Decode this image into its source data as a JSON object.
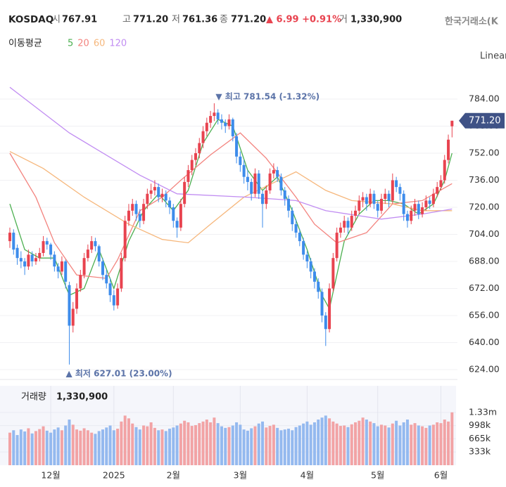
{
  "header": {
    "symbol": "KOSDAQ",
    "open_label": "시",
    "open": "767.91",
    "high_label": "고",
    "high": "771.20",
    "low_label": "저",
    "low": "761.36",
    "close_label": "종",
    "close": "771.20",
    "change": "▲ 6.99 +0.91%",
    "volume_label": "거",
    "volume": "1,330,900",
    "exchange": "한국거래소(K",
    "scale": "Linear"
  },
  "ma_legend": {
    "title": "이동평균",
    "items": [
      "5",
      "20",
      "60",
      "120"
    ]
  },
  "chart_data": {
    "type": "candlestick",
    "up_color": "#e8434f",
    "down_color": "#3d8ceb",
    "vol_up_color": "#f2a3a5",
    "vol_down_color": "#94b9ef",
    "ylim": [
      620,
      790
    ],
    "yticks": [
      {
        "value": 624,
        "label": "624.00"
      },
      {
        "value": 640,
        "label": "640.00"
      },
      {
        "value": 656,
        "label": "656.00"
      },
      {
        "value": 672,
        "label": "672.00"
      },
      {
        "value": 688,
        "label": "688.00"
      },
      {
        "value": 704,
        "label": "704.00"
      },
      {
        "value": 720,
        "label": "720.00"
      },
      {
        "value": 736,
        "label": "736.00"
      },
      {
        "value": 752,
        "label": "752.00"
      },
      {
        "value": 768,
        "label": "768.00"
      },
      {
        "value": 784,
        "label": "784.00"
      }
    ],
    "x_labels": [
      {
        "label": "12월",
        "at": 11
      },
      {
        "label": "2025",
        "at": 28
      },
      {
        "label": "2월",
        "at": 44
      },
      {
        "label": "3월",
        "at": 62
      },
      {
        "label": "4월",
        "at": 80
      },
      {
        "label": "5월",
        "at": 99
      },
      {
        "label": "6월",
        "at": 116
      }
    ],
    "high_note": {
      "text": "▼ 최고 781.54 (-1.32%)",
      "at": 55
    },
    "low_note": {
      "text": "▲ 최저 627.01 (23.00%)",
      "at": 16
    },
    "candles": [
      [
        700,
        708,
        696,
        705
      ],
      [
        705,
        707,
        692,
        695
      ],
      [
        696,
        698,
        686,
        690
      ],
      [
        690,
        694,
        684,
        688
      ],
      [
        688,
        690,
        680,
        685
      ],
      [
        685,
        695,
        683,
        692
      ],
      [
        692,
        694,
        685,
        688
      ],
      [
        688,
        693,
        686,
        690
      ],
      [
        690,
        696,
        688,
        693
      ],
      [
        693,
        703,
        691,
        700
      ],
      [
        700,
        702,
        695,
        698
      ],
      [
        698,
        699,
        689,
        692
      ],
      [
        692,
        694,
        682,
        685
      ],
      [
        685,
        687,
        678,
        682
      ],
      [
        682,
        691,
        680,
        688
      ],
      [
        688,
        689,
        672,
        676
      ],
      [
        674,
        676,
        627.01,
        650
      ],
      [
        650,
        664,
        646,
        660
      ],
      [
        660,
        675,
        657,
        672
      ],
      [
        672,
        683,
        670,
        680
      ],
      [
        680,
        693,
        678,
        690
      ],
      [
        690,
        698,
        688,
        695
      ],
      [
        695,
        703,
        693,
        700
      ],
      [
        700,
        702,
        694,
        697
      ],
      [
        697,
        698,
        685,
        688
      ],
      [
        688,
        690,
        677,
        680
      ],
      [
        680,
        683,
        672,
        675
      ],
      [
        675,
        678,
        664,
        668
      ],
      [
        668,
        671,
        659,
        662
      ],
      [
        662,
        675,
        660,
        672
      ],
      [
        672,
        693,
        670,
        690
      ],
      [
        690,
        715,
        688,
        712
      ],
      [
        712,
        722,
        709,
        718
      ],
      [
        718,
        725,
        715,
        722
      ],
      [
        722,
        724,
        712,
        716
      ],
      [
        716,
        719,
        708,
        712
      ],
      [
        712,
        725,
        710,
        722
      ],
      [
        722,
        731,
        719,
        728
      ],
      [
        728,
        734,
        725,
        730
      ],
      [
        730,
        736,
        727,
        732
      ],
      [
        732,
        734,
        723,
        726
      ],
      [
        726,
        731,
        723,
        728
      ],
      [
        728,
        730,
        720,
        724
      ],
      [
        724,
        726,
        716,
        720
      ],
      [
        720,
        722,
        708,
        712
      ],
      [
        712,
        714,
        702,
        708
      ],
      [
        708,
        725,
        706,
        722
      ],
      [
        722,
        738,
        720,
        735
      ],
      [
        735,
        745,
        732,
        742
      ],
      [
        742,
        751,
        739,
        748
      ],
      [
        748,
        755,
        745,
        752
      ],
      [
        752,
        761,
        749,
        758
      ],
      [
        758,
        768,
        755,
        765
      ],
      [
        765,
        773,
        762,
        770
      ],
      [
        770,
        777,
        767,
        774
      ],
      [
        774,
        781.54,
        771,
        776
      ],
      [
        776,
        778,
        769,
        772
      ],
      [
        772,
        775,
        766,
        770
      ],
      [
        770,
        772,
        764,
        768
      ],
      [
        768,
        775,
        766,
        772
      ],
      [
        772,
        773,
        759,
        762
      ],
      [
        762,
        764,
        746,
        750
      ],
      [
        750,
        753,
        741,
        745
      ],
      [
        745,
        748,
        734,
        738
      ],
      [
        738,
        742,
        730,
        735
      ],
      [
        735,
        737,
        724,
        728
      ],
      [
        728,
        743,
        726,
        740
      ],
      [
        740,
        742,
        725,
        728
      ],
      [
        728,
        730,
        708,
        722
      ],
      [
        722,
        733,
        719,
        730
      ],
      [
        730,
        743,
        728,
        740
      ],
      [
        740,
        746,
        737,
        742
      ],
      [
        742,
        744,
        735,
        738
      ],
      [
        738,
        740,
        727,
        730
      ],
      [
        730,
        732,
        721,
        725
      ],
      [
        725,
        727,
        714,
        718
      ],
      [
        718,
        720,
        706,
        710
      ],
      [
        710,
        713,
        702,
        705
      ],
      [
        705,
        707,
        697,
        700
      ],
      [
        700,
        702,
        689,
        692
      ],
      [
        692,
        694,
        684,
        688
      ],
      [
        688,
        690,
        678,
        682
      ],
      [
        682,
        684,
        672,
        676
      ],
      [
        676,
        678,
        666,
        670
      ],
      [
        670,
        672,
        652,
        656
      ],
      [
        656,
        658,
        638,
        648
      ],
      [
        648,
        675,
        646,
        672
      ],
      [
        672,
        693,
        670,
        690
      ],
      [
        690,
        708,
        688,
        705
      ],
      [
        705,
        711,
        702,
        708
      ],
      [
        708,
        715,
        705,
        712
      ],
      [
        712,
        714,
        704,
        708
      ],
      [
        708,
        718,
        706,
        715
      ],
      [
        715,
        721,
        712,
        718
      ],
      [
        718,
        727,
        716,
        724
      ],
      [
        724,
        729,
        720,
        726
      ],
      [
        726,
        728,
        718,
        722
      ],
      [
        722,
        731,
        720,
        728
      ],
      [
        728,
        730,
        719,
        722
      ],
      [
        722,
        724,
        714,
        718
      ],
      [
        718,
        728,
        716,
        725
      ],
      [
        725,
        731,
        722,
        728
      ],
      [
        728,
        730,
        720,
        724
      ],
      [
        724,
        740,
        722,
        736
      ],
      [
        736,
        738,
        729,
        732
      ],
      [
        732,
        734,
        724,
        728
      ],
      [
        728,
        730,
        712,
        716
      ],
      [
        716,
        718,
        708,
        712
      ],
      [
        712,
        721,
        710,
        718
      ],
      [
        718,
        725,
        715,
        722
      ],
      [
        722,
        724,
        713,
        716
      ],
      [
        716,
        723,
        714,
        720
      ],
      [
        720,
        727,
        718,
        724
      ],
      [
        724,
        726,
        719,
        722
      ],
      [
        722,
        731,
        720,
        728
      ],
      [
        728,
        735,
        726,
        732
      ],
      [
        732,
        739,
        730,
        736
      ],
      [
        736,
        751,
        734,
        748
      ],
      [
        748,
        763,
        746,
        760
      ],
      [
        767.91,
        771.2,
        761.36,
        771.2
      ]
    ],
    "volume_title": "거래량",
    "volume_value": "1,330,900",
    "vlim": [
      0,
      2000000
    ],
    "vticks": [
      {
        "value": 333000,
        "label": "333k"
      },
      {
        "value": 665000,
        "label": "665k"
      },
      {
        "value": 998000,
        "label": "998k"
      },
      {
        "value": 1330000,
        "label": "1.33m"
      }
    ],
    "volume": [
      820000,
      880000,
      760000,
      900000,
      850000,
      930000,
      800000,
      860000,
      910000,
      980000,
      870000,
      820000,
      900000,
      950000,
      880000,
      1000000,
      1150000,
      1020000,
      900000,
      870000,
      930000,
      880000,
      820000,
      790000,
      860000,
      900000,
      950000,
      1000000,
      880000,
      920000,
      1100000,
      1250000,
      1180000,
      1050000,
      960000,
      900000,
      1000000,
      980000,
      1080000,
      940000,
      880000,
      900000,
      860000,
      920000,
      950000,
      1000000,
      1050000,
      1120000,
      1080000,
      990000,
      1010000,
      1060000,
      1100000,
      1150000,
      1080000,
      1200000,
      1060000,
      980000,
      940000,
      960000,
      1000000,
      1080000,
      1020000,
      900000,
      870000,
      930000,
      980000,
      1050000,
      1100000,
      950000,
      990000,
      1020000,
      940000,
      880000,
      900000,
      920000,
      880000,
      960000,
      1000000,
      1050000,
      1100000,
      1020000,
      1080000,
      1150000,
      1200000,
      1250000,
      1180000,
      1100000,
      1050000,
      990000,
      1000000,
      960000,
      1030000,
      1080000,
      1120000,
      1200000,
      1150000,
      1100000,
      1060000,
      980000,
      1020000,
      1000000,
      950000,
      1050000,
      1120000,
      1000000,
      1080000,
      1150000,
      1020000,
      1060000,
      1000000,
      980000,
      940000,
      1000000,
      1020000,
      1080000,
      1060000,
      1150000,
      1100000,
      1330900
    ],
    "series": [
      {
        "name": "5",
        "color": "#4caf50",
        "x": [
          0,
          4,
          8,
          12,
          16,
          20,
          24,
          28,
          32,
          36,
          40,
          44,
          48,
          52,
          56,
          60,
          64,
          68,
          72,
          76,
          80,
          84,
          86,
          90,
          94,
          98,
          102,
          106,
          110,
          114,
          117,
          119
        ],
        "values": [
          722,
          695,
          690,
          690,
          668,
          672,
          695,
          672,
          700,
          718,
          728,
          718,
          730,
          758,
          772,
          768,
          742,
          730,
          738,
          718,
          695,
          668,
          660,
          700,
          716,
          724,
          724,
          722,
          716,
          722,
          736,
          752
        ]
      },
      {
        "name": "20",
        "color": "#f3837e",
        "x": [
          0,
          7,
          12,
          18,
          26,
          29,
          35,
          41,
          46,
          54,
          62,
          69,
          77,
          82,
          88,
          96,
          103,
          111,
          119
        ],
        "values": [
          752,
          726,
          699,
          680,
          678,
          689,
          718,
          726,
          736,
          751,
          764,
          749,
          726,
          710,
          699,
          705,
          722,
          724,
          734
        ]
      },
      {
        "name": "60",
        "color": "#f6b77c",
        "x": [
          0,
          9,
          20,
          32,
          41,
          48,
          54,
          63,
          77,
          85,
          92,
          103,
          111,
          119
        ],
        "values": [
          753,
          743,
          726,
          710,
          701,
          699,
          710,
          726,
          741,
          730,
          724,
          722,
          718,
          718
        ]
      },
      {
        "name": "120",
        "color": "#c18df2",
        "x": [
          0,
          16,
          35,
          45,
          64,
          77,
          85,
          100,
          111,
          119
        ],
        "values": [
          791,
          764,
          739,
          728,
          726,
          724,
          718,
          713,
          716,
          719
        ]
      }
    ]
  }
}
